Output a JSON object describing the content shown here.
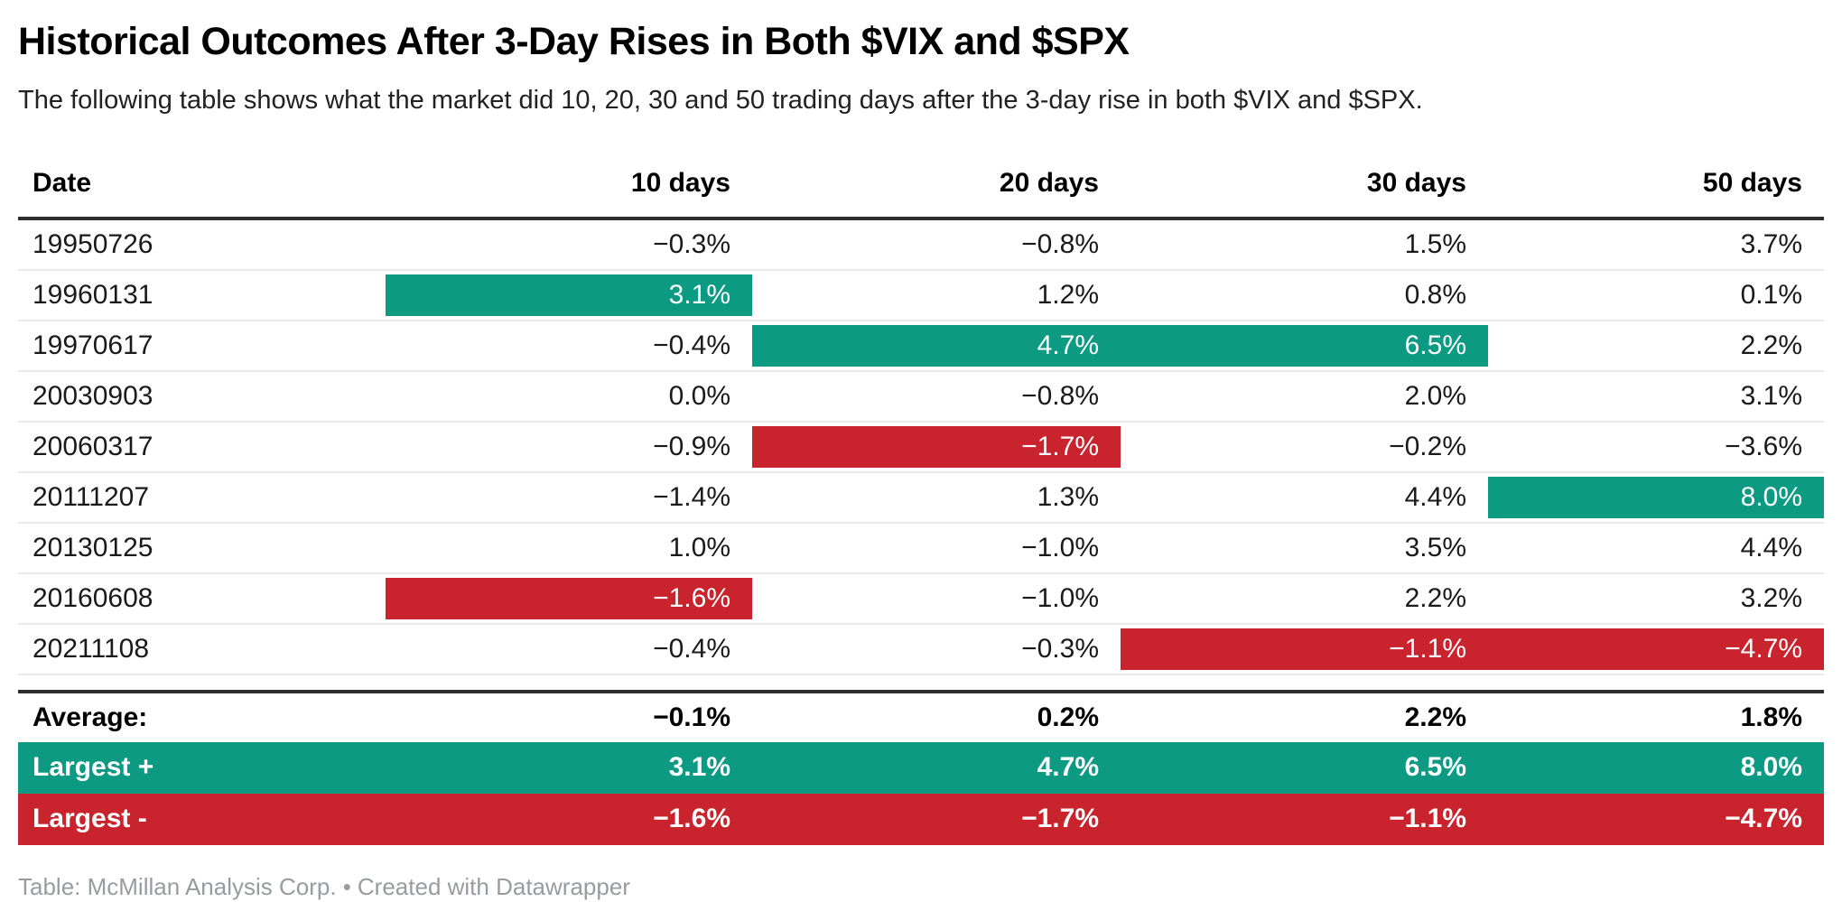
{
  "title": "Historical Outcomes After 3-Day Rises in Both $VIX and $SPX",
  "subtitle": "The following table shows what the market did 10, 20, 30 and 50 trading days after the 3-day rise in both $VIX and $SPX.",
  "colors": {
    "positive_highlight": "#0d9a82",
    "negative_highlight": "#c9232d",
    "header_rule": "#2e2e2e",
    "row_divider": "#ebebeb",
    "footer_text": "#979ca0"
  },
  "chart_data": {
    "type": "table",
    "title": "Historical Outcomes After 3-Day Rises in Both $VIX and $SPX",
    "columns": [
      "Date",
      "10 days",
      "20 days",
      "30 days",
      "50 days"
    ],
    "rows": [
      {
        "date": "19950726",
        "values": [
          "−0.3%",
          "−0.8%",
          "1.5%",
          "3.7%"
        ],
        "hl": [
          "none",
          "none",
          "none",
          "none"
        ]
      },
      {
        "date": "19960131",
        "values": [
          "3.1%",
          "1.2%",
          "0.8%",
          "0.1%"
        ],
        "hl": [
          "pos",
          "none",
          "none",
          "none"
        ]
      },
      {
        "date": "19970617",
        "values": [
          "−0.4%",
          "4.7%",
          "6.5%",
          "2.2%"
        ],
        "hl": [
          "none",
          "pos",
          "pos",
          "none"
        ]
      },
      {
        "date": "20030903",
        "values": [
          "0.0%",
          "−0.8%",
          "2.0%",
          "3.1%"
        ],
        "hl": [
          "none",
          "none",
          "none",
          "none"
        ]
      },
      {
        "date": "20060317",
        "values": [
          "−0.9%",
          "−1.7%",
          "−0.2%",
          "−3.6%"
        ],
        "hl": [
          "none",
          "neg",
          "none",
          "none"
        ]
      },
      {
        "date": "20111207",
        "values": [
          "−1.4%",
          "1.3%",
          "4.4%",
          "8.0%"
        ],
        "hl": [
          "none",
          "none",
          "none",
          "pos"
        ]
      },
      {
        "date": "20130125",
        "values": [
          "1.0%",
          "−1.0%",
          "3.5%",
          "4.4%"
        ],
        "hl": [
          "none",
          "none",
          "none",
          "none"
        ]
      },
      {
        "date": "20160608",
        "values": [
          "−1.6%",
          "−1.0%",
          "2.2%",
          "3.2%"
        ],
        "hl": [
          "neg",
          "none",
          "none",
          "none"
        ]
      },
      {
        "date": "20211108",
        "values": [
          "−0.4%",
          "−0.3%",
          "−1.1%",
          "−4.7%"
        ],
        "hl": [
          "none",
          "none",
          "neg",
          "neg"
        ]
      }
    ],
    "summary": [
      {
        "label": "Average:",
        "values": [
          "−0.1%",
          "0.2%",
          "2.2%",
          "1.8%"
        ]
      },
      {
        "label": "Largest +",
        "values": [
          "3.1%",
          "4.7%",
          "6.5%",
          "8.0%"
        ]
      },
      {
        "label": "Largest -",
        "values": [
          "−1.6%",
          "−1.7%",
          "−1.1%",
          "−4.7%"
        ]
      }
    ]
  },
  "footer": {
    "attribution": "Table: McMillan Analysis Corp. •",
    "created_with": "Created with Datawrapper"
  }
}
